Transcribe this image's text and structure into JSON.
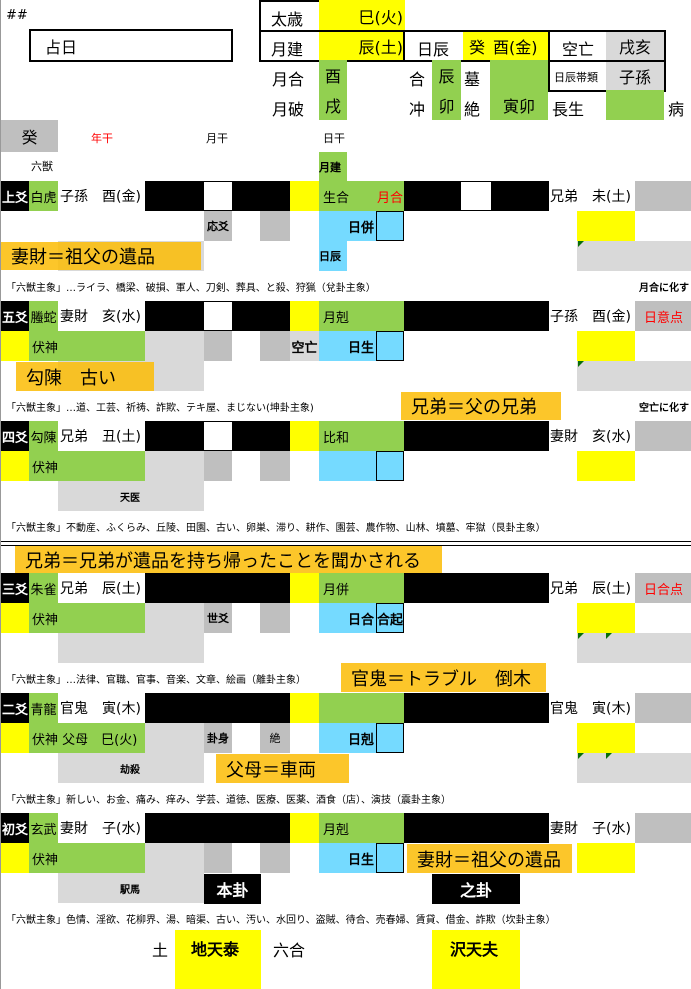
{
  "header": {
    "marker": "##",
    "date_label": "占日",
    "taisai_label": "太歳",
    "taisai_value": "巳(火)",
    "month_label": "月建",
    "month_value": "辰(土)",
    "day_label": "日辰",
    "day_stem": "癸",
    "day_value": "酉(金)",
    "kuubou_label": "空亡",
    "kuubou_value": "戌亥",
    "month_he_label": "月合",
    "month_he_value": "酉",
    "month_po_label": "月破",
    "month_po_value": "戌",
    "he_label": "合",
    "he_value": "辰",
    "mu_label": "墓",
    "chong_label": "冲",
    "chong_value": "卯",
    "jue_label": "絶",
    "jue_value": "寅卯",
    "changsheng_label": "長生",
    "bing_label": "病",
    "daitai_label": "日辰帯類",
    "daitai_value": "子孫",
    "stem_cell": "癸",
    "year_stem_label": "年干",
    "month_stem_label": "月干",
    "day_stem_label": "日干",
    "beast_label": "六獣",
    "month_jian_tag": "月建",
    "day_tag": "日辰"
  },
  "yao": [
    {
      "label": "上爻",
      "beast": "白虎",
      "rel": "子孫",
      "branch": "酉(金)",
      "main": "yin",
      "changed": "yin",
      "month": "生合",
      "month_red": "月合",
      "day": "日併",
      "day_box": "",
      "ch_rel": "兄弟",
      "ch_branch": "未(土)",
      "right": "",
      "flag": "応爻",
      "jue": "",
      "kuubou": "",
      "fushin": "",
      "fushin_rel": "",
      "row3_left": true,
      "row3_text": "",
      "row3_right": 1,
      "left_yellow": false,
      "line_text": "「六獣主象」…ライラ、橋梁、破損、軍人、刀剣、葬具、と殺、狩猟（兌卦主象）",
      "line_note": "月合に化す"
    },
    {
      "label": "五爻",
      "beast": "螣蛇",
      "rel": "妻財",
      "branch": "亥(水)",
      "main": "yin",
      "changed": "yang",
      "month": "月剋",
      "month_red": "",
      "day": "日生",
      "day_box": "",
      "ch_rel": "子孫",
      "ch_branch": "酉(金)",
      "right": "日意点",
      "flag": "",
      "jue": "",
      "kuubou": "空亡",
      "fushin": "伏神",
      "fushin_rel": "",
      "row3_left": true,
      "row3_text": "",
      "row3_right": 1,
      "left_yellow": true,
      "line_text": "「六獣主象」…道、工芸、祈祷、詐欺、テキ屋、まじない(坤卦主象)",
      "line_note": "空亡に化す"
    },
    {
      "label": "四爻",
      "beast": "勾陳",
      "rel": "兄弟",
      "branch": "丑(土)",
      "main": "yin",
      "changed": "yang",
      "month": "比和",
      "month_red": "",
      "day": "",
      "day_box": "",
      "ch_rel": "妻財",
      "ch_branch": "亥(水)",
      "right": "",
      "flag": "",
      "jue": "",
      "kuubou": "",
      "fushin": "伏神",
      "fushin_rel": "",
      "row3_left": true,
      "row3_text": "天医",
      "row3_right": 0,
      "left_yellow": true,
      "line_text": "「六獣主象」不動産、ふくらみ、丘陵、田園、古い、卵巣、滞り、耕作、園芸、農作物、山林、墳墓、牢獄（艮卦主象）",
      "line_note": ""
    },
    {
      "label": "三爻",
      "beast": "朱雀",
      "rel": "兄弟",
      "branch": "辰(土)",
      "main": "yang",
      "changed": "yang",
      "month": "月併",
      "month_red": "",
      "day": "日合",
      "day_box": "合起",
      "ch_rel": "兄弟",
      "ch_branch": "辰(土)",
      "right": "日合点",
      "flag": "世爻",
      "jue": "",
      "kuubou": "",
      "fushin": "伏神",
      "fushin_rel": "",
      "row3_left": true,
      "row3_text": "",
      "row3_right": 2,
      "left_yellow": true,
      "line_text": "「六獣主象」…法律、官職、官事、音楽、文章、絵画（離卦主象）",
      "line_note": ""
    },
    {
      "label": "二爻",
      "beast": "青龍",
      "rel": "官鬼",
      "branch": "寅(木)",
      "main": "yang",
      "changed": "yang",
      "month": "",
      "month_red": "",
      "day": "日剋",
      "day_box": "",
      "ch_rel": "官鬼",
      "ch_branch": "寅(木)",
      "right": "",
      "flag": "卦身",
      "jue": "絶",
      "kuubou": "",
      "fushin": "伏神",
      "fushin_rel": "父母　巳(火)",
      "row3_left": true,
      "row3_text": "劫殺",
      "row3_right": 2,
      "left_yellow": true,
      "line_text": "「六獣主象」新しい、お金、痛み、痒み、学芸、道徳、医療、医薬、酒食（店）、演技（震卦主象）",
      "line_note": ""
    },
    {
      "label": "初爻",
      "beast": "玄武",
      "rel": "妻財",
      "branch": "子(水)",
      "main": "yang",
      "changed": "yang",
      "month": "月剋",
      "month_red": "",
      "day": "日生",
      "day_box": "",
      "ch_rel": "妻財",
      "ch_branch": "子(水)",
      "right": "",
      "flag": "",
      "jue": "",
      "kuubou": "",
      "fushin": "伏神",
      "fushin_rel": "",
      "row3_left": true,
      "row3_text": "駅馬",
      "row3_right": 0,
      "left_yellow": true,
      "line_text": "「六獣主象」色情、淫欲、花柳界、湯、暗渠、古い、汚い、水回り、盗賊、待合、売春婦、賃貸、借金、詐欺（坎卦主象）",
      "line_note": ""
    }
  ],
  "notes": [
    "妻財＝祖父の遺品",
    "勾陳　古い",
    "兄弟＝父の兄弟",
    "兄弟＝兄弟が遺品を持ち帰ったことを聞かされる",
    "官鬼＝トラブル　倒木",
    "父母＝車両",
    "妻財＝祖父の遺品"
  ],
  "footer": {
    "main_hex_label": "本卦",
    "changed_hex_label": "之卦",
    "element": "土",
    "main_hex": "地天泰",
    "relation": "六合",
    "changed_hex": "沢天夫"
  },
  "colors": {
    "yellow": "#ffff00",
    "green": "#92d050",
    "blue": "#75daff",
    "note": "#fbbc05"
  }
}
